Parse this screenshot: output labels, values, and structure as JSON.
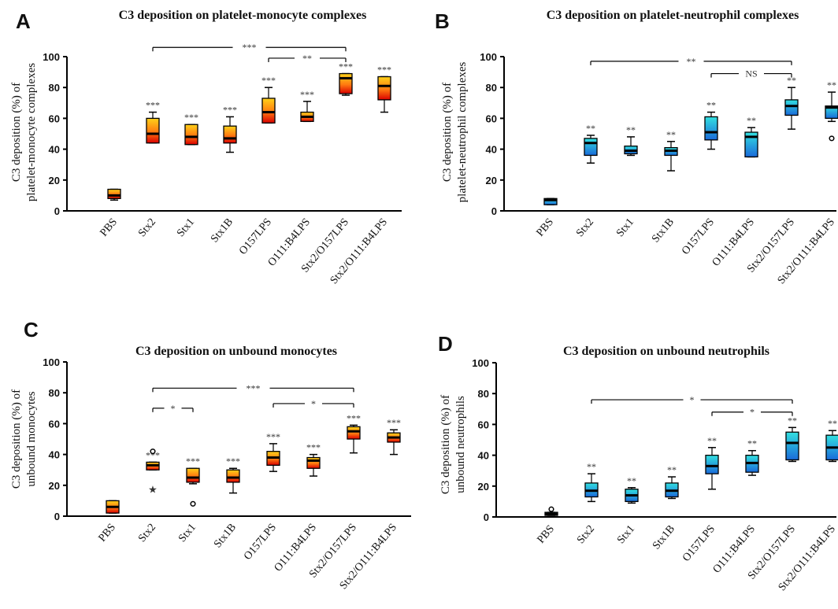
{
  "colors": {
    "warm_top": "#ffd21a",
    "warm_mid": "#ff7a10",
    "warm_bottom": "#d90000",
    "cool_top": "#33e0e0",
    "cool_bottom": "#1a6ad9",
    "axis": "#000000"
  },
  "chart_data": [
    {
      "panel": "A",
      "type": "box",
      "title": "C3 deposition on platelet-monocyte complexes",
      "ylabel": [
        "C3 deposition (%) of",
        "platelet-monocyte complexes"
      ],
      "ylim": [
        0,
        100
      ],
      "yticks": [
        0,
        20,
        40,
        60,
        80,
        100
      ],
      "palette": "warm",
      "categories": [
        "PBS",
        "Stx2",
        "Stx1",
        "Stx1B",
        "O157LPS",
        "O111:B4LPS",
        "Stx2/O157LPS",
        "Stx2/O111:B4LPS"
      ],
      "boxes": [
        {
          "min": 7,
          "q1": 8,
          "median": 10,
          "q3": 14,
          "max": 14,
          "sig": ""
        },
        {
          "min": 44,
          "q1": 44,
          "median": 50,
          "q3": 60,
          "max": 64,
          "sig": "***"
        },
        {
          "min": 43,
          "q1": 43,
          "median": 48,
          "q3": 56,
          "max": 56,
          "sig": "***"
        },
        {
          "min": 38,
          "q1": 44,
          "median": 47,
          "q3": 55,
          "max": 61,
          "sig": "***"
        },
        {
          "min": 57,
          "q1": 57,
          "median": 64,
          "q3": 73,
          "max": 80,
          "sig": "***"
        },
        {
          "min": 58,
          "q1": 58,
          "median": 61,
          "q3": 64,
          "max": 71,
          "sig": "***"
        },
        {
          "min": 75,
          "q1": 76,
          "median": 86,
          "q3": 89,
          "max": 89,
          "sig": "***"
        },
        {
          "min": 64,
          "q1": 72,
          "median": 81,
          "q3": 87,
          "max": 87,
          "sig": "***"
        }
      ],
      "outliers": [],
      "brackets": [
        {
          "from": 1,
          "to": 6,
          "y": 106,
          "label": "***"
        },
        {
          "from": 4,
          "to": 6,
          "y": 99,
          "label": "**"
        }
      ]
    },
    {
      "panel": "B",
      "type": "box",
      "title": "C3 deposition on platelet-neutrophil complexes",
      "ylabel": [
        "C3 deposition (%) of",
        "platelet-neutrophil complexes"
      ],
      "ylim": [
        0,
        100
      ],
      "yticks": [
        0,
        20,
        40,
        60,
        80,
        100
      ],
      "palette": "cool",
      "categories": [
        "PBS",
        "Stx2",
        "Stx1",
        "Stx1B",
        "O157LPS",
        "O111:B4LPS",
        "Stx2/O157LPS",
        "Stx2/O111:B4LPS"
      ],
      "boxes": [
        {
          "min": 4,
          "q1": 4,
          "median": 7,
          "q3": 8,
          "max": 8,
          "sig": ""
        },
        {
          "min": 31,
          "q1": 36,
          "median": 44,
          "q3": 47,
          "max": 49,
          "sig": "**"
        },
        {
          "min": 36,
          "q1": 37,
          "median": 39,
          "q3": 42,
          "max": 48,
          "sig": "**"
        },
        {
          "min": 26,
          "q1": 36,
          "median": 39,
          "q3": 41,
          "max": 45,
          "sig": "**"
        },
        {
          "min": 40,
          "q1": 46,
          "median": 51,
          "q3": 61,
          "max": 64,
          "sig": "**"
        },
        {
          "min": 35,
          "q1": 35,
          "median": 48,
          "q3": 51,
          "max": 54,
          "sig": "**"
        },
        {
          "min": 53,
          "q1": 62,
          "median": 68,
          "q3": 72,
          "max": 80,
          "sig": "**"
        },
        {
          "min": 58,
          "q1": 60,
          "median": 67,
          "q3": 68,
          "max": 77,
          "sig": "**"
        }
      ],
      "outliers": [
        {
          "cat": 7,
          "y": 47,
          "marker": "circle"
        }
      ],
      "brackets": [
        {
          "from": 1,
          "to": 6,
          "y": 97,
          "label": "**"
        },
        {
          "from": 4,
          "to": 6,
          "y": 89,
          "label": "NS"
        }
      ]
    },
    {
      "panel": "C",
      "type": "box",
      "title": "C3 deposition on unbound monocytes",
      "ylabel": [
        "C3 deposition (%) of",
        "unbound monocytes"
      ],
      "ylim": [
        0,
        100
      ],
      "yticks": [
        0,
        20,
        40,
        60,
        80,
        100
      ],
      "palette": "warm",
      "categories": [
        "PBS",
        "Stx2",
        "Stx1",
        "Stx1B",
        "O157LPS",
        "O111:B4LPS",
        "Stx2/O157LPS",
        "Stx2/O111:B4LPS"
      ],
      "boxes": [
        {
          "min": 2,
          "q1": 2,
          "median": 6,
          "q3": 10,
          "max": 10,
          "sig": ""
        },
        {
          "min": 30,
          "q1": 30,
          "median": 33,
          "q3": 35,
          "max": 35,
          "sig": "***"
        },
        {
          "min": 21,
          "q1": 22,
          "median": 25,
          "q3": 31,
          "max": 31,
          "sig": "***"
        },
        {
          "min": 15,
          "q1": 22,
          "median": 25,
          "q3": 30,
          "max": 31,
          "sig": "***"
        },
        {
          "min": 29,
          "q1": 33,
          "median": 38,
          "q3": 42,
          "max": 47,
          "sig": "***"
        },
        {
          "min": 26,
          "q1": 31,
          "median": 36,
          "q3": 38,
          "max": 40,
          "sig": "***"
        },
        {
          "min": 41,
          "q1": 50,
          "median": 55,
          "q3": 58,
          "max": 59,
          "sig": "***"
        },
        {
          "min": 40,
          "q1": 48,
          "median": 51,
          "q3": 54,
          "max": 56,
          "sig": "***"
        }
      ],
      "outliers": [
        {
          "cat": 1,
          "y": 42,
          "marker": "circle"
        },
        {
          "cat": 1,
          "y": 17,
          "marker": "star"
        },
        {
          "cat": 2,
          "y": 8,
          "marker": "circle"
        }
      ],
      "brackets": [
        {
          "from": 1,
          "to": 6,
          "y": 83,
          "label": "***"
        },
        {
          "from": 1,
          "to": 2,
          "y": 70,
          "label": "*"
        },
        {
          "from": 4,
          "to": 6,
          "y": 73,
          "label": "*"
        }
      ]
    },
    {
      "panel": "D",
      "type": "box",
      "title": "C3 deposition on unbound neutrophils",
      "ylabel": [
        "C3 deposition (%) of",
        "unbound neutrophils"
      ],
      "ylim": [
        0,
        100
      ],
      "yticks": [
        0,
        20,
        40,
        60,
        80,
        100
      ],
      "palette": "cool",
      "categories": [
        "PBS",
        "Stx2",
        "Stx1",
        "Stx1B",
        "O157LPS",
        "O111:B4LPS",
        "Stx2/O157LPS",
        "Stx2/O111:B4LPS"
      ],
      "boxes": [
        {
          "min": 1,
          "q1": 1,
          "median": 2,
          "q3": 3,
          "max": 3,
          "sig": ""
        },
        {
          "min": 10,
          "q1": 13,
          "median": 17,
          "q3": 22,
          "max": 28,
          "sig": "**"
        },
        {
          "min": 9,
          "q1": 10,
          "median": 14,
          "q3": 18,
          "max": 19,
          "sig": "**"
        },
        {
          "min": 12,
          "q1": 13,
          "median": 17,
          "q3": 22,
          "max": 26,
          "sig": "**"
        },
        {
          "min": 18,
          "q1": 28,
          "median": 33,
          "q3": 40,
          "max": 45,
          "sig": "**"
        },
        {
          "min": 27,
          "q1": 29,
          "median": 35,
          "q3": 40,
          "max": 43,
          "sig": "**"
        },
        {
          "min": 36,
          "q1": 37,
          "median": 48,
          "q3": 55,
          "max": 58,
          "sig": "**"
        },
        {
          "min": 36,
          "q1": 37,
          "median": 45,
          "q3": 53,
          "max": 56,
          "sig": "**"
        }
      ],
      "outliers": [
        {
          "cat": 0,
          "y": 5,
          "marker": "circle"
        }
      ],
      "brackets": [
        {
          "from": 1,
          "to": 6,
          "y": 76,
          "label": "*"
        },
        {
          "from": 4,
          "to": 6,
          "y": 68,
          "label": "*"
        }
      ]
    }
  ]
}
